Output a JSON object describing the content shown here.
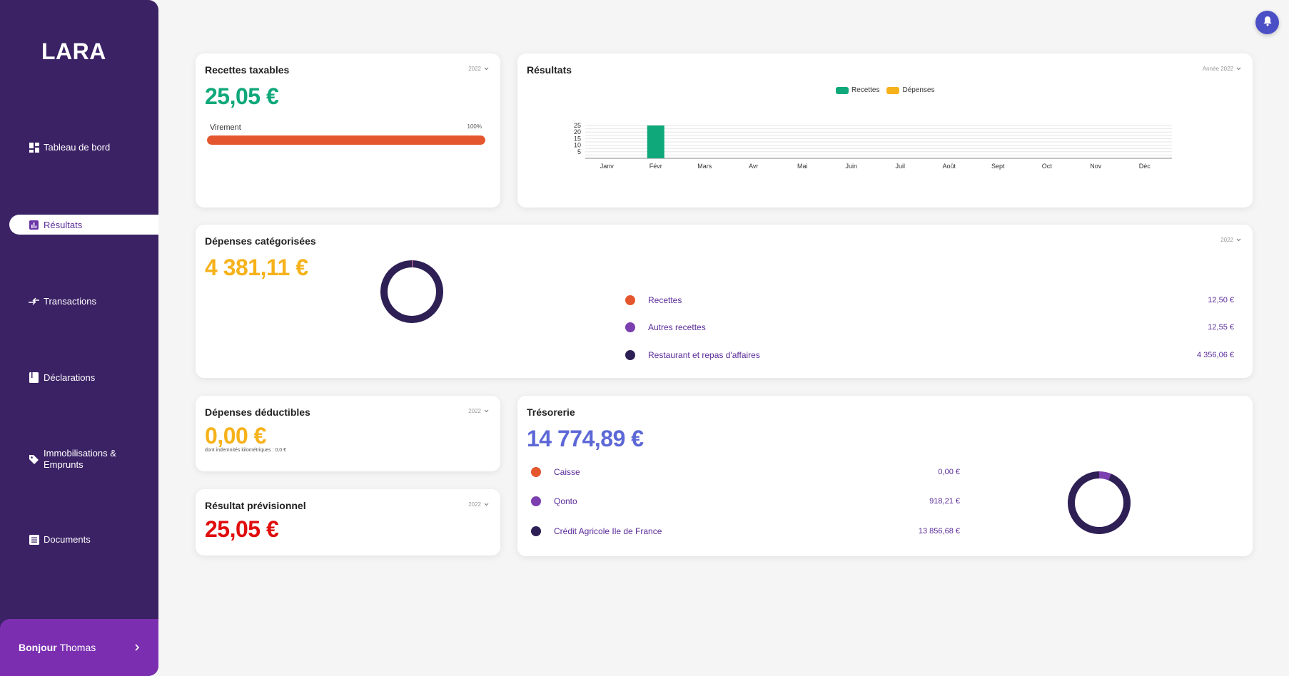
{
  "app": {
    "logo": "LARA"
  },
  "sidebar": {
    "items": [
      {
        "label": "Tableau de bord"
      },
      {
        "label": "Résultats"
      },
      {
        "label": "Transactions"
      },
      {
        "label": "Déclarations"
      },
      {
        "label": "Immobilisations & Emprunts"
      },
      {
        "label": "Documents"
      }
    ],
    "greeting_bold": "Bonjour",
    "greeting_name": "Thomas"
  },
  "cards": {
    "recettes": {
      "title": "Recettes taxables",
      "year": "2022",
      "amount": "25,05 €",
      "bar_label": "Virement",
      "bar_pct": "100%",
      "bar_fill": 1.0
    },
    "resultats": {
      "title": "Résultats",
      "year": "Année 2022",
      "legend_recettes": "Recettes",
      "legend_depenses": "Dépenses"
    },
    "depenses_cat": {
      "title": "Dépenses catégorisées",
      "year": "2022",
      "amount": "4 381,11 €",
      "rows": [
        {
          "label": "Recettes",
          "value": "12,50 €",
          "color": "#e4572e"
        },
        {
          "label": "Autres recettes",
          "value": "12,55 €",
          "color": "#7b3fb0"
        },
        {
          "label": "Restaurant et repas d'affaires",
          "value": "4 356,06 €",
          "color": "#2e1f55"
        }
      ]
    },
    "depenses_ded": {
      "title": "Dépenses déductibles",
      "year": "2022",
      "amount": "0,00 €",
      "note": "dont indemnités kilométriques : 0,0 €"
    },
    "resultat_prev": {
      "title": "Résultat prévisionnel",
      "year": "2022",
      "amount": "25,05 €"
    },
    "tresorerie": {
      "title": "Trésorerie",
      "amount": "14 774,89 €",
      "rows": [
        {
          "label": "Caisse",
          "value": "0,00 €",
          "color": "#e4572e"
        },
        {
          "label": "Qonto",
          "value": "918,21 €",
          "color": "#7b3fb0"
        },
        {
          "label": "Crédit Agricole Ile de France",
          "value": "13 856,68 €",
          "color": "#2e1f55"
        }
      ]
    }
  },
  "colors": {
    "sidebar": "#3b2265",
    "accent": "#7b2fb0",
    "green": "#0fa87a",
    "yellow": "#f6b21b",
    "red": "#e00d0d",
    "blue": "#5d68d6"
  },
  "chart_data": [
    {
      "type": "bar",
      "categories": [
        "Janv",
        "Févr",
        "Mars",
        "Avr",
        "Mai",
        "Juin",
        "Juil",
        "Août",
        "Sept",
        "Oct",
        "Nov",
        "Déc"
      ],
      "series": [
        {
          "name": "Recettes",
          "values": [
            0,
            25.05,
            0,
            0,
            0,
            0,
            0,
            0,
            0,
            0,
            0,
            0
          ],
          "color": "#0fa87a"
        },
        {
          "name": "Dépenses",
          "values": [
            0,
            0,
            0,
            0,
            0,
            0,
            0,
            0,
            0,
            0,
            0,
            0
          ],
          "color": "#f6b21b"
        }
      ],
      "yticks": [
        5,
        10,
        15,
        20,
        25
      ],
      "ylim": [
        0,
        25
      ],
      "grid": true,
      "legend": "top"
    },
    {
      "type": "pie",
      "variant": "donut",
      "labels": [
        "Recettes",
        "Autres recettes",
        "Restaurant et repas d'affaires"
      ],
      "values": [
        12.5,
        12.55,
        4356.06
      ],
      "colors": [
        "#e4572e",
        "#7b3fb0",
        "#2e1f55"
      ]
    },
    {
      "type": "pie",
      "variant": "donut",
      "labels": [
        "Caisse",
        "Qonto",
        "Crédit Agricole Ile de France"
      ],
      "values": [
        0.0,
        918.21,
        13856.68
      ],
      "colors": [
        "#e4572e",
        "#7b3fb0",
        "#2e1f55"
      ]
    }
  ]
}
